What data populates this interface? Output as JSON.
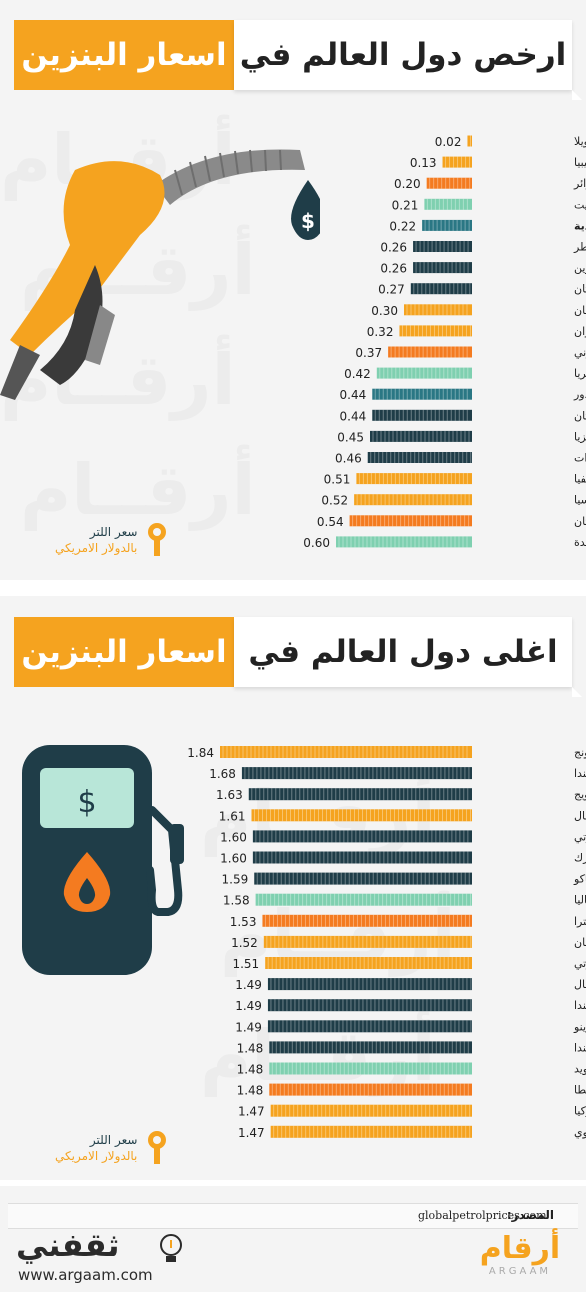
{
  "charts": [
    {
      "title_left": "اسعار البنزين",
      "title_right": "ارخص دول العالم في",
      "key_line1": "سعر اللتر",
      "key_line2": "بالدولار الامريكي"
    },
    {
      "title_left": "اسعار البنزين",
      "title_right": "اغلى دول العالم في",
      "key_line1": "سعر اللتر",
      "key_line2": "بالدولار الامريكي"
    }
  ],
  "colors": {
    "orange": "#f5a31f",
    "dark_orange": "#f47b20",
    "navy": "#1f3d48",
    "teal": "#2a7784",
    "mint": "#7fd0b0",
    "panel": "#f4f4f4"
  },
  "watermark_text": "أرقــام",
  "watermark_en": "argaam",
  "chart_data": [
    {
      "type": "bar",
      "orientation": "horizontal",
      "categories": [
        "فنزويلا",
        "ليبيا",
        "الجزائر",
        "الكويت",
        "السعودية",
        "قطر",
        "البحرين",
        "تركمانستان",
        "عمان",
        "إيران",
        "بروني",
        "نيجيريا",
        "الإكوادور",
        "كازاخستان",
        "ماليزيا",
        "الإمارات",
        "بوليفيا",
        "روسيا",
        "قيرغيزستان",
        "الولايات المتحدة"
      ],
      "values": [
        0.02,
        0.13,
        0.2,
        0.21,
        0.22,
        0.26,
        0.26,
        0.27,
        0.3,
        0.32,
        0.37,
        0.42,
        0.44,
        0.44,
        0.45,
        0.46,
        0.51,
        0.52,
        0.54,
        0.6
      ],
      "value_labels": [
        "0.02",
        "0.13",
        "0.20",
        "0.21",
        "0.22",
        "0.26",
        "0.26",
        "0.27",
        "0.30",
        "0.32",
        "0.37",
        "0.42",
        "0.44",
        "0.44",
        "0.45",
        "0.46",
        "0.51",
        "0.52",
        "0.54",
        "0.60"
      ],
      "bar_colors": [
        "#f5a31f",
        "#f5a31f",
        "#f47b20",
        "#7fd0b0",
        "#2a7784",
        "#1f3d48",
        "#1f3d48",
        "#1f3d48",
        "#f5a31f",
        "#f5a31f",
        "#f47b20",
        "#7fd0b0",
        "#2a7784",
        "#1f3d48",
        "#1f3d48",
        "#1f3d48",
        "#f5a31f",
        "#f5a31f",
        "#f47b20",
        "#7fd0b0"
      ],
      "bold_categories": [
        "السعودية"
      ],
      "xlim": [
        0,
        0.6
      ]
    },
    {
      "type": "bar",
      "orientation": "horizontal",
      "categories": [
        "هونج كونج",
        "هولندا",
        "النرويج",
        "الصومال",
        "جيبوتي",
        "الدنمارك",
        "موناكو",
        "ايطاليا",
        "انجلترا",
        "اليونان",
        "مايوتي",
        "البرتغال",
        "ايسلندا",
        "سان مارينو",
        "فنلندا",
        "السويد",
        "مالطا",
        "تركيا",
        "زمبابوي"
      ],
      "values": [
        1.84,
        1.68,
        1.63,
        1.61,
        1.6,
        1.6,
        1.59,
        1.58,
        1.53,
        1.52,
        1.51,
        1.49,
        1.49,
        1.49,
        1.48,
        1.48,
        1.48,
        1.47,
        1.47
      ],
      "value_labels": [
        "1.84",
        "1.68",
        "1.63",
        "1.61",
        "1.60",
        "1.60",
        "1.59",
        "1.58",
        "1.53",
        "1.52",
        "1.51",
        "1.49",
        "1.49",
        "1.49",
        "1.48",
        "1.48",
        "1.48",
        "1.47",
        "1.47"
      ],
      "bar_colors": [
        "#f5a31f",
        "#1f3d48",
        "#1f3d48",
        "#f5a31f",
        "#1f3d48",
        "#1f3d48",
        "#1f3d48",
        "#7fd0b0",
        "#f47b20",
        "#f5a31f",
        "#f5a31f",
        "#1f3d48",
        "#1f3d48",
        "#1f3d48",
        "#1f3d48",
        "#7fd0b0",
        "#f47b20",
        "#f5a31f",
        "#f5a31f"
      ],
      "xlim": [
        0,
        1.84
      ]
    }
  ],
  "footer": {
    "source_label": "المصدر:",
    "source_url": "globalpetrolprices.com",
    "logo_right_ar": "أرقام",
    "logo_right_en": "ARGAAM",
    "logo_left_ar": "ثقفني",
    "logo_left_en": "www.argaam.com"
  }
}
